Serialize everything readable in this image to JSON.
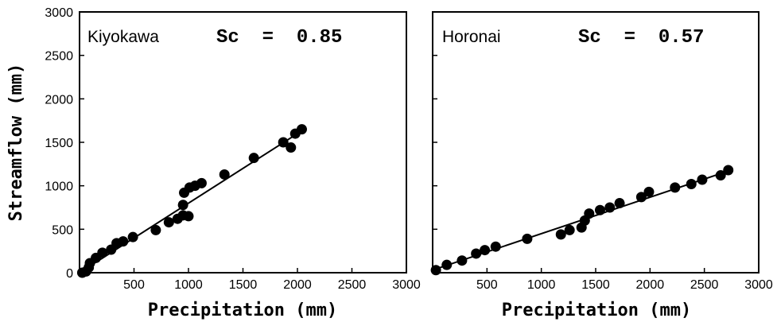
{
  "chart_data": [
    {
      "type": "scatter",
      "panel_label": "Kiyokawa",
      "annotation": "Sc = 0.85",
      "xlabel": "Precipitation (mm)",
      "ylabel": "Streamflow (mm)",
      "xlim": [
        0,
        3000
      ],
      "ylim": [
        0,
        3000
      ],
      "x_ticks": [
        "500",
        "1000",
        "1500",
        "2000",
        "2500",
        "3000"
      ],
      "y_ticks": [
        "0",
        "500",
        "1000",
        "1500",
        "2000",
        "2500",
        "3000"
      ],
      "grid": false,
      "fit_line": {
        "x": [
          0,
          2050
        ],
        "y": [
          0,
          1640
        ]
      },
      "points": [
        {
          "x": 25,
          "y": 0
        },
        {
          "x": 60,
          "y": 15
        },
        {
          "x": 85,
          "y": 60
        },
        {
          "x": 95,
          "y": 110
        },
        {
          "x": 150,
          "y": 170
        },
        {
          "x": 210,
          "y": 230
        },
        {
          "x": 290,
          "y": 265
        },
        {
          "x": 340,
          "y": 340
        },
        {
          "x": 400,
          "y": 360
        },
        {
          "x": 490,
          "y": 410
        },
        {
          "x": 700,
          "y": 490
        },
        {
          "x": 820,
          "y": 580
        },
        {
          "x": 900,
          "y": 620
        },
        {
          "x": 950,
          "y": 660
        },
        {
          "x": 1000,
          "y": 650
        },
        {
          "x": 950,
          "y": 780
        },
        {
          "x": 960,
          "y": 920
        },
        {
          "x": 1010,
          "y": 980
        },
        {
          "x": 1060,
          "y": 1000
        },
        {
          "x": 1120,
          "y": 1030
        },
        {
          "x": 1330,
          "y": 1130
        },
        {
          "x": 1600,
          "y": 1320
        },
        {
          "x": 1870,
          "y": 1500
        },
        {
          "x": 1940,
          "y": 1440
        },
        {
          "x": 1980,
          "y": 1600
        },
        {
          "x": 2040,
          "y": 1650
        }
      ]
    },
    {
      "type": "scatter",
      "panel_label": "Horonai",
      "annotation": "Sc = 0.57",
      "xlabel": "Precipitation (mm)",
      "ylabel": "",
      "xlim": [
        0,
        3000
      ],
      "ylim": [
        0,
        3000
      ],
      "x_ticks": [
        "500",
        "1000",
        "1500",
        "2000",
        "2500",
        "3000"
      ],
      "grid": false,
      "fit_line": {
        "x": [
          0,
          2720
        ],
        "y": [
          30,
          1170
        ]
      },
      "points": [
        {
          "x": 30,
          "y": 30
        },
        {
          "x": 130,
          "y": 90
        },
        {
          "x": 270,
          "y": 140
        },
        {
          "x": 400,
          "y": 220
        },
        {
          "x": 480,
          "y": 260
        },
        {
          "x": 580,
          "y": 300
        },
        {
          "x": 870,
          "y": 390
        },
        {
          "x": 1180,
          "y": 440
        },
        {
          "x": 1260,
          "y": 490
        },
        {
          "x": 1370,
          "y": 520
        },
        {
          "x": 1400,
          "y": 600
        },
        {
          "x": 1440,
          "y": 680
        },
        {
          "x": 1540,
          "y": 720
        },
        {
          "x": 1630,
          "y": 750
        },
        {
          "x": 1720,
          "y": 800
        },
        {
          "x": 1920,
          "y": 870
        },
        {
          "x": 1990,
          "y": 930
        },
        {
          "x": 2230,
          "y": 980
        },
        {
          "x": 2380,
          "y": 1020
        },
        {
          "x": 2480,
          "y": 1070
        },
        {
          "x": 2650,
          "y": 1120
        },
        {
          "x": 2720,
          "y": 1180
        }
      ]
    }
  ]
}
